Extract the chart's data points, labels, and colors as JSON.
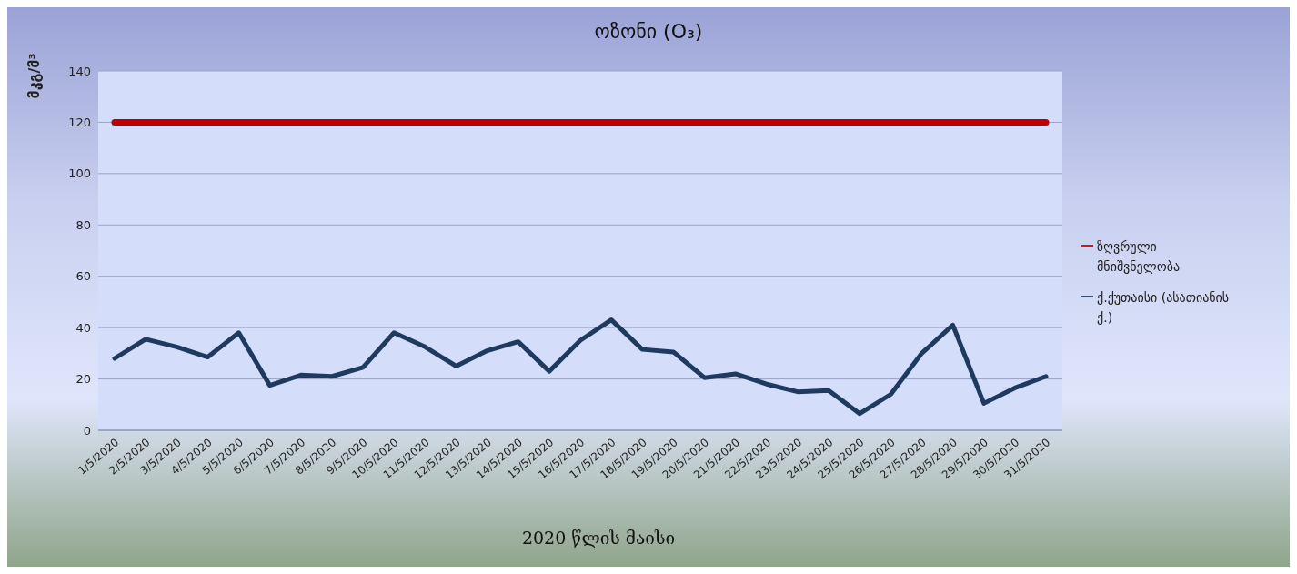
{
  "chart_data": {
    "type": "line",
    "title": "ოზონი (O₃)",
    "ylabel": "მკგ/მ³",
    "xlabel": "2020 წლის მაისი",
    "categories": [
      "1/5/2020",
      "2/5/2020",
      "3/5/2020",
      "4/5/2020",
      "5/5/2020",
      "6/5/2020",
      "7/5/2020",
      "8/5/2020",
      "9/5/2020",
      "10/5/2020",
      "11/5/2020",
      "12/5/2020",
      "13/5/2020",
      "14/5/2020",
      "15/5/2020",
      "16/5/2020",
      "17/5/2020",
      "18/5/2020",
      "19/5/2020",
      "20/5/2020",
      "21/5/2020",
      "22/5/2020",
      "23/5/2020",
      "24/5/2020",
      "25/5/2020",
      "26/5/2020",
      "27/5/2020",
      "28/5/2020",
      "29/5/2020",
      "30/5/2020",
      "31/5/2020"
    ],
    "series": [
      {
        "name": "ქ.ქუთაისი (ასათიანის ქ.)",
        "color": "#1f3a5f",
        "values": [
          28,
          35.5,
          32.5,
          28.5,
          38,
          17.5,
          21.5,
          21,
          24.5,
          38,
          32.5,
          25,
          31,
          34.5,
          23,
          35,
          43,
          31.5,
          30.5,
          20.5,
          22,
          18,
          15,
          15.5,
          6.5,
          14,
          30,
          41,
          10.5,
          16.5,
          21
        ]
      },
      {
        "name": "ზღვრული მნიშვნელობა",
        "color": "#c00000",
        "values": [
          120,
          120,
          120,
          120,
          120,
          120,
          120,
          120,
          120,
          120,
          120,
          120,
          120,
          120,
          120,
          120,
          120,
          120,
          120,
          120,
          120,
          120,
          120,
          120,
          120,
          120,
          120,
          120,
          120,
          120,
          120
        ]
      }
    ],
    "ylim": [
      0,
      140
    ],
    "yticks": [
      0,
      20,
      40,
      60,
      80,
      100,
      120,
      140
    ],
    "grid": "y",
    "legend": "right",
    "marker": "none",
    "line_style": "solid"
  }
}
